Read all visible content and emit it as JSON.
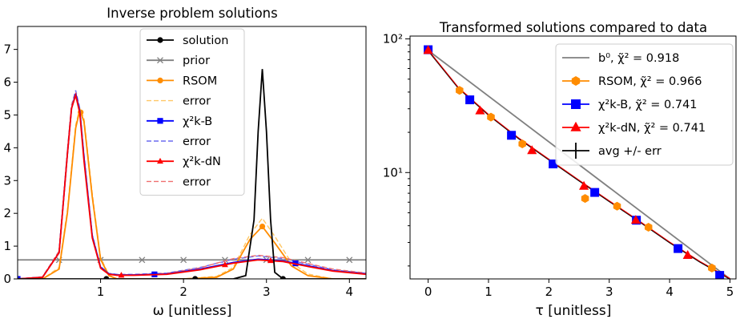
{
  "chart_data": [
    {
      "type": "line",
      "title": "Inverse problem solutions",
      "xlabel": "ω [unitless]",
      "ylabel": "",
      "xlim": [
        0.0,
        4.2
      ],
      "ylim": [
        0,
        7.7
      ],
      "xticks": [
        1,
        2,
        3,
        4
      ],
      "yticks": [
        0,
        1,
        2,
        3,
        4,
        5,
        6,
        7
      ],
      "grid": false,
      "legend_position": "top-center",
      "series": [
        {
          "name": "solution",
          "color": "#000000",
          "marker": "circle",
          "style": "solid",
          "x": [
            0.0,
            0.2,
            0.4,
            0.6,
            0.8,
            1.07,
            1.4,
            1.8,
            2.14,
            2.4,
            2.6,
            2.75,
            2.85,
            2.9,
            2.95,
            3.0,
            3.05,
            3.1,
            3.2,
            3.5,
            4.0,
            4.2
          ],
          "y": [
            0.0,
            0.0,
            0.0,
            0.0,
            0.0,
            0.0,
            0.0,
            0.0,
            0.0,
            0.0,
            0.0,
            0.1,
            1.8,
            4.5,
            6.4,
            4.5,
            1.8,
            0.2,
            0.0,
            0.0,
            0.0,
            0.0
          ],
          "marker_x": [
            1.07,
            2.14,
            3.2
          ]
        },
        {
          "name": "prior",
          "color": "#808080",
          "marker": "x",
          "style": "solid",
          "x": [
            0.0,
            4.2
          ],
          "y": [
            0.58,
            0.58
          ],
          "marker_x": [
            0.5,
            1.0,
            1.5,
            2.0,
            2.5,
            3.0,
            3.5,
            4.0
          ]
        },
        {
          "name": "RSOM",
          "color": "#ff8c00",
          "marker": "circle",
          "style": "solid",
          "x": [
            0.0,
            0.3,
            0.5,
            0.6,
            0.7,
            0.75,
            0.8,
            0.9,
            1.0,
            1.1,
            1.2,
            1.5,
            2.0,
            2.4,
            2.6,
            2.8,
            2.95,
            3.1,
            3.3,
            3.5,
            3.8,
            4.2
          ],
          "y": [
            0.0,
            0.0,
            0.3,
            2.0,
            4.6,
            5.15,
            4.8,
            2.5,
            0.6,
            0.1,
            0.0,
            0.0,
            0.0,
            0.05,
            0.3,
            1.2,
            1.6,
            1.1,
            0.4,
            0.1,
            0.0,
            0.0
          ],
          "marker_x": [
            0.76,
            2.95
          ]
        },
        {
          "name": "error",
          "color": "#ffc766",
          "marker": "none",
          "style": "dashed",
          "x": [
            0.0,
            0.3,
            0.5,
            0.6,
            0.7,
            0.75,
            0.8,
            0.9,
            1.0,
            1.1,
            1.2,
            1.5,
            2.0,
            2.4,
            2.6,
            2.8,
            2.95,
            3.1,
            3.3,
            3.5,
            3.8,
            4.2
          ],
          "y": [
            0.0,
            0.0,
            0.35,
            2.1,
            4.7,
            5.2,
            4.9,
            2.6,
            0.65,
            0.12,
            0.0,
            0.0,
            0.0,
            0.08,
            0.35,
            1.35,
            1.85,
            1.3,
            0.5,
            0.15,
            0.0,
            0.0
          ]
        },
        {
          "name": "χ²k-B",
          "color": "#0000ff",
          "marker": "square",
          "style": "solid",
          "x": [
            0.0,
            0.3,
            0.5,
            0.6,
            0.65,
            0.7,
            0.75,
            0.8,
            0.9,
            1.0,
            1.1,
            1.2,
            1.4,
            1.8,
            2.2,
            2.6,
            2.9,
            3.2,
            3.5,
            3.8,
            4.2
          ],
          "y": [
            0.0,
            0.05,
            0.8,
            3.8,
            5.2,
            5.65,
            5.1,
            3.7,
            1.3,
            0.35,
            0.15,
            0.12,
            0.12,
            0.15,
            0.3,
            0.5,
            0.6,
            0.55,
            0.4,
            0.25,
            0.15
          ],
          "marker_x": [
            0.0,
            1.65,
            3.35
          ]
        },
        {
          "name": "error",
          "color": "#6b6bf0",
          "marker": "none",
          "style": "dashed",
          "x": [
            0.0,
            0.3,
            0.5,
            0.6,
            0.65,
            0.7,
            0.75,
            0.8,
            0.9,
            1.0,
            1.1,
            1.2,
            1.4,
            1.8,
            2.2,
            2.6,
            2.9,
            3.2,
            3.5,
            3.8,
            4.2
          ],
          "y": [
            0.0,
            0.06,
            0.85,
            3.9,
            5.3,
            5.75,
            5.2,
            3.8,
            1.35,
            0.38,
            0.17,
            0.14,
            0.14,
            0.18,
            0.35,
            0.6,
            0.7,
            0.62,
            0.45,
            0.28,
            0.17
          ]
        },
        {
          "name": "χ²k-dN",
          "color": "#ff0000",
          "marker": "triangle",
          "style": "solid",
          "x": [
            0.0,
            0.3,
            0.5,
            0.6,
            0.65,
            0.7,
            0.75,
            0.8,
            0.9,
            1.0,
            1.1,
            1.2,
            1.4,
            1.8,
            2.2,
            2.6,
            2.9,
            3.2,
            3.5,
            3.8,
            4.2
          ],
          "y": [
            0.0,
            0.05,
            0.8,
            3.8,
            5.2,
            5.6,
            5.05,
            3.6,
            1.25,
            0.33,
            0.14,
            0.11,
            0.11,
            0.14,
            0.28,
            0.48,
            0.58,
            0.53,
            0.38,
            0.24,
            0.14
          ],
          "marker_x": [
            1.25,
            2.5,
            3.05
          ]
        },
        {
          "name": "error",
          "color": "#f07070",
          "marker": "none",
          "style": "dashed",
          "x": [
            0.0,
            0.3,
            0.5,
            0.6,
            0.65,
            0.7,
            0.75,
            0.8,
            0.9,
            1.0,
            1.1,
            1.2,
            1.4,
            1.8,
            2.2,
            2.6,
            2.9,
            3.2,
            3.5,
            3.8,
            4.2
          ],
          "y": [
            0.0,
            0.06,
            0.85,
            3.9,
            5.3,
            5.7,
            5.15,
            3.7,
            1.3,
            0.36,
            0.16,
            0.13,
            0.13,
            0.17,
            0.34,
            0.62,
            0.72,
            0.65,
            0.47,
            0.3,
            0.18
          ]
        }
      ]
    },
    {
      "type": "line",
      "title": "Transformed solutions compared to data",
      "xlabel": "τ [unitless]",
      "ylabel": "",
      "xlim": [
        -0.3,
        5.1
      ],
      "ylim": [
        1.6,
        105
      ],
      "yscale": "log",
      "xticks": [
        0,
        1,
        2,
        3,
        4,
        5
      ],
      "yticks": [
        10,
        100
      ],
      "ytick_labels": [
        "10¹",
        "10²"
      ],
      "grid": false,
      "legend_position": "top-right",
      "series": [
        {
          "name": "b⁰, χ̃² = 0.918",
          "color": "#808080",
          "marker": "none",
          "style": "solid",
          "x": [
            0.0,
            5.0
          ],
          "y": [
            82.0,
            1.6
          ]
        },
        {
          "name": "RSOM, χ̃² = 0.966",
          "color": "#ff8c00",
          "marker": "hexagon",
          "style": "solid",
          "x": [
            0.52,
            1.04,
            1.56,
            2.6,
            3.13,
            3.65,
            4.7
          ],
          "y": [
            41.2,
            26.0,
            16.4,
            6.4,
            5.6,
            3.9,
            1.93
          ]
        },
        {
          "name": "χ²k-B, χ̃² = 0.741",
          "color": "#0000ff",
          "marker": "square",
          "style": "solid",
          "x": [
            0.0,
            0.69,
            1.38,
            2.07,
            2.76,
            3.45,
            4.14,
            4.83
          ],
          "y": [
            83.0,
            35.0,
            19.0,
            11.6,
            7.1,
            4.4,
            2.7,
            1.7
          ]
        },
        {
          "name": "χ²k-dN, χ̃² = 0.741",
          "color": "#ff0000",
          "marker": "triangle",
          "style": "solid",
          "x": [
            0.0,
            0.86,
            1.72,
            2.58,
            3.44,
            4.3
          ],
          "y": [
            82.0,
            29.0,
            14.6,
            7.9,
            4.4,
            2.4
          ]
        },
        {
          "name": "avg +/- err",
          "color": "#000000",
          "marker": "errorbar",
          "style": "solid",
          "x": [
            0.0,
            0.5,
            1.0,
            1.5,
            2.0,
            2.5,
            3.0,
            3.5,
            4.0,
            4.5,
            5.0
          ],
          "y": [
            82.0,
            43.0,
            27.0,
            18.0,
            12.5,
            8.7,
            6.1,
            4.3,
            3.0,
            2.15,
            1.6
          ]
        }
      ]
    }
  ]
}
